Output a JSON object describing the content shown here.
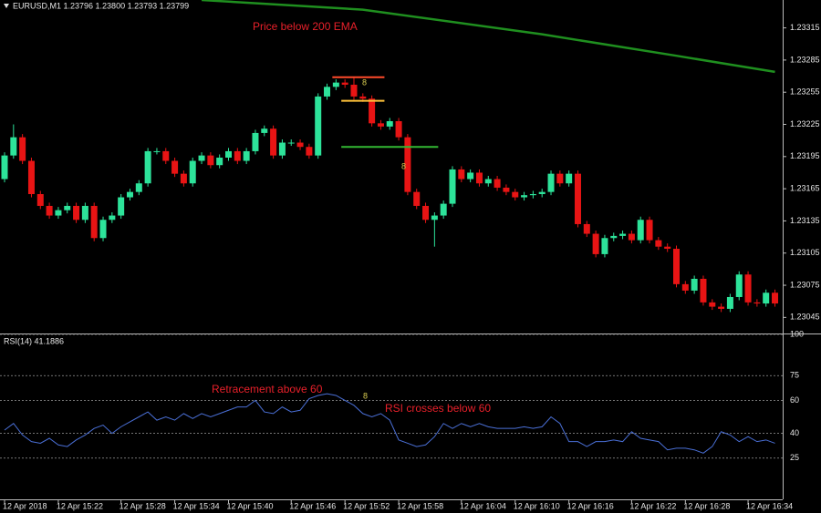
{
  "chart_data": [
    {
      "type": "candlestick",
      "title": "EURUSD,M1  1.23796 1.23800 1.23793 1.23799",
      "categories": [
        "12 Apr 2018",
        null,
        null,
        null,
        null,
        null,
        "12 Apr 15:22",
        null,
        null,
        null,
        null,
        null,
        null,
        "12 Apr 15:28",
        null,
        null,
        null,
        null,
        null,
        "12 Apr 15:34",
        null,
        null,
        null,
        null,
        null,
        "12 Apr 15:40",
        null,
        null,
        null,
        null,
        null,
        null,
        "12 Apr 15:46",
        null,
        null,
        null,
        null,
        null,
        "12 Apr 15:52",
        null,
        null,
        null,
        null,
        null,
        "12 Apr 15:58",
        null,
        null,
        null,
        null,
        null,
        null,
        "12 Apr 16:04",
        null,
        null,
        null,
        null,
        null,
        "12 Apr 16:10",
        null,
        null,
        null,
        null,
        null,
        "12 Apr 16:16",
        null,
        null,
        null,
        null,
        null,
        null,
        "12 Apr 16:22",
        null,
        null,
        null,
        null,
        null,
        "12 Apr 16:28",
        null,
        null,
        null,
        null,
        null,
        null,
        "12 Apr 16:34",
        null,
        null,
        null
      ],
      "open": [
        1.23174,
        1.23196,
        1.23213,
        1.23191,
        1.2316,
        1.23149,
        1.2314,
        1.23145,
        1.23149,
        1.23136,
        1.23149,
        1.23119,
        1.23136,
        1.2314,
        1.23157,
        1.23162,
        1.2317,
        1.232,
        1.232,
        1.23191,
        1.23179,
        1.2317,
        1.23191,
        1.23196,
        1.23187,
        1.23194,
        1.232,
        1.23191,
        1.232,
        1.23217,
        1.23221,
        1.23196,
        1.23208,
        1.23208,
        1.23204,
        1.23196,
        1.23251,
        1.2326,
        1.23264,
        1.23262,
        1.23251,
        1.23249,
        1.23226,
        1.23223,
        1.23228,
        1.23213,
        1.23162,
        1.23149,
        1.23136,
        1.2314,
        1.23151,
        1.23183,
        1.23174,
        1.2318,
        1.2317,
        1.23174,
        1.23166,
        1.23162,
        1.23157,
        1.23159,
        1.2316,
        1.23162,
        1.23179,
        1.2317,
        1.23179,
        1.23132,
        1.23123,
        1.23104,
        1.23119,
        1.23121,
        1.23123,
        1.23117,
        1.23136,
        1.23117,
        1.23111,
        1.23109,
        1.23076,
        1.2307,
        1.23081,
        1.23059,
        1.23055,
        1.23053,
        1.23064,
        1.23085,
        1.23059,
        1.23058,
        1.23068
      ],
      "high": [
        1.23199,
        1.23225,
        1.23216,
        1.23194,
        1.23163,
        1.23152,
        1.23148,
        1.23152,
        1.23152,
        1.23152,
        1.23152,
        1.23139,
        1.23143,
        1.2316,
        1.23165,
        1.23173,
        1.23203,
        1.23203,
        1.23203,
        1.23194,
        1.23182,
        1.23194,
        1.23199,
        1.23199,
        1.23197,
        1.23203,
        1.23203,
        1.23203,
        1.2322,
        1.23224,
        1.23224,
        1.23211,
        1.23211,
        1.23211,
        1.23207,
        1.23254,
        1.23263,
        1.23267,
        1.23267,
        1.23269,
        1.23254,
        1.23252,
        1.23229,
        1.23231,
        1.23231,
        1.23216,
        1.23165,
        1.23152,
        1.23143,
        1.23154,
        1.23186,
        1.23186,
        1.23183,
        1.23183,
        1.23177,
        1.23177,
        1.23169,
        1.23165,
        1.23162,
        1.23163,
        1.23165,
        1.23182,
        1.23182,
        1.23182,
        1.23182,
        1.23135,
        1.23126,
        1.23122,
        1.23124,
        1.23126,
        1.23126,
        1.23139,
        1.23139,
        1.2312,
        1.23114,
        1.23112,
        1.23079,
        1.23084,
        1.23084,
        1.23062,
        1.23058,
        1.23067,
        1.23088,
        1.23088,
        1.23062,
        1.23071,
        1.23071
      ],
      "low": [
        1.23171,
        1.23193,
        1.23188,
        1.23157,
        1.23146,
        1.23137,
        1.23137,
        1.23142,
        1.23133,
        1.23133,
        1.23116,
        1.23116,
        1.23133,
        1.23137,
        1.23154,
        1.23159,
        1.23167,
        1.23197,
        1.23188,
        1.23176,
        1.23167,
        1.23167,
        1.23188,
        1.23184,
        1.23184,
        1.23191,
        1.23188,
        1.23188,
        1.23197,
        1.23214,
        1.23193,
        1.23193,
        1.23205,
        1.23201,
        1.23193,
        1.23193,
        1.23248,
        1.23257,
        1.23259,
        1.23248,
        1.23246,
        1.23223,
        1.2322,
        1.2322,
        1.2321,
        1.23159,
        1.23146,
        1.23133,
        1.23111,
        1.23137,
        1.23148,
        1.23171,
        1.23171,
        1.23167,
        1.23167,
        1.23163,
        1.23159,
        1.23154,
        1.23154,
        1.23156,
        1.23157,
        1.23159,
        1.23167,
        1.23167,
        1.23129,
        1.2312,
        1.23101,
        1.23101,
        1.23116,
        1.23118,
        1.23114,
        1.23114,
        1.23114,
        1.23108,
        1.23106,
        1.23073,
        1.23067,
        1.23067,
        1.23056,
        1.23052,
        1.2305,
        1.2305,
        1.23061,
        1.23056,
        1.23055,
        1.23055,
        1.23055
      ],
      "close": [
        1.23196,
        1.23213,
        1.23191,
        1.2316,
        1.23149,
        1.2314,
        1.23145,
        1.23149,
        1.23136,
        1.23149,
        1.23119,
        1.23136,
        1.2314,
        1.23157,
        1.23162,
        1.2317,
        1.232,
        1.232,
        1.23191,
        1.23179,
        1.2317,
        1.23191,
        1.23196,
        1.23187,
        1.23194,
        1.232,
        1.23191,
        1.232,
        1.23217,
        1.23221,
        1.23196,
        1.23208,
        1.23208,
        1.23204,
        1.23196,
        1.23251,
        1.2326,
        1.23264,
        1.23262,
        1.23251,
        1.23249,
        1.23226,
        1.23223,
        1.23228,
        1.23213,
        1.23162,
        1.23149,
        1.23136,
        1.2314,
        1.23151,
        1.23183,
        1.23174,
        1.2318,
        1.2317,
        1.23174,
        1.23166,
        1.23162,
        1.23157,
        1.23159,
        1.2316,
        1.23162,
        1.23179,
        1.2317,
        1.23179,
        1.23132,
        1.23123,
        1.23104,
        1.23119,
        1.23121,
        1.23123,
        1.23117,
        1.23136,
        1.23117,
        1.23111,
        1.23109,
        1.23076,
        1.2307,
        1.23081,
        1.23059,
        1.23055,
        1.23053,
        1.23064,
        1.23085,
        1.23059,
        1.23058,
        1.23068,
        1.23058
      ],
      "up_color": "#2de39a",
      "down_color": "#e81414",
      "ylim": [
        1.2303,
        1.23341
      ],
      "yticks": [
        1.23315,
        1.23285,
        1.23255,
        1.23225,
        1.23195,
        1.23165,
        1.23135,
        1.23105,
        1.23075,
        1.23045
      ],
      "ema": {
        "color": "#1f8f1f",
        "x": [
          22,
          40,
          60,
          75,
          86
        ],
        "values": [
          1.23341,
          1.23332,
          1.23309,
          1.23289,
          1.23274
        ]
      },
      "levels": [
        {
          "value": 1.23269,
          "color": "#ff4a2a",
          "x": [
            37,
            42
          ]
        },
        {
          "value": 1.23247,
          "color": "#ffc23a",
          "x": [
            38,
            42
          ]
        },
        {
          "value": 1.23204,
          "color": "#33b833",
          "x": [
            38,
            48
          ]
        }
      ],
      "annotations": [
        {
          "text": "Price below 200 EMA",
          "color": "#e8202a"
        },
        {
          "text": "8",
          "color": "#d8cc50"
        },
        {
          "text": "8",
          "color": "#d8cc50"
        }
      ]
    },
    {
      "type": "line",
      "title": "RSI(14) 41.1886",
      "series": [
        {
          "color": "#4a6fd6",
          "values": [
            42,
            46,
            39,
            35,
            34,
            37,
            33,
            32,
            36,
            39,
            43,
            45,
            40,
            44,
            47,
            50,
            53,
            48,
            50,
            48,
            52,
            49,
            52,
            50,
            52,
            54,
            56,
            56,
            60,
            53,
            52,
            56,
            53,
            54,
            61,
            63,
            64,
            63,
            60,
            57,
            52,
            50,
            52,
            48,
            36,
            34,
            32,
            33,
            38,
            46,
            43,
            46,
            44,
            46,
            44,
            43,
            43,
            43,
            44,
            43,
            44,
            50,
            46,
            35,
            35,
            32,
            35,
            35,
            36,
            35,
            41,
            37,
            36,
            35,
            30,
            31,
            31,
            30,
            28,
            32,
            41,
            39,
            35,
            38,
            35,
            36,
            34
          ]
        }
      ],
      "ylim": [
        0,
        100
      ],
      "yticks": [
        100,
        75,
        60,
        40,
        25
      ],
      "grid": true,
      "annotations": [
        {
          "text": "Retracement above 60",
          "color": "#e8202a"
        },
        {
          "text": "RSI crosses below 60",
          "color": "#e8202a"
        },
        {
          "text": "8",
          "color": "#d8cc50"
        }
      ]
    }
  ]
}
